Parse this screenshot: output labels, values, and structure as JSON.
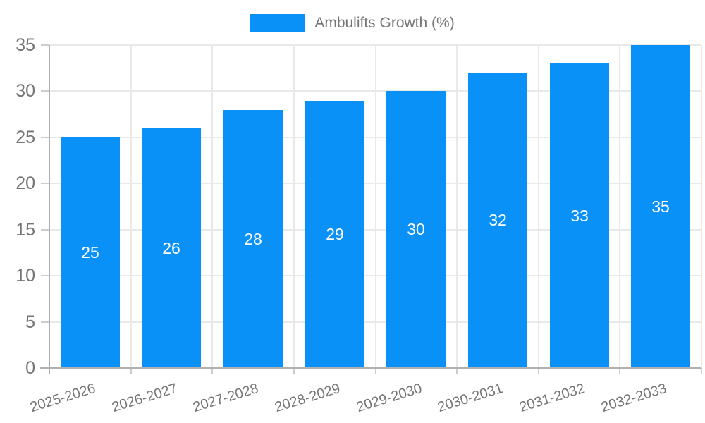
{
  "legend": {
    "label": "Ambulifts Growth (%)",
    "swatch_color": "#0991f7"
  },
  "chart_data": {
    "type": "bar",
    "title": "Ambulifts Growth (%)",
    "categories": [
      "2025-2026",
      "2026-2027",
      "2027-2028",
      "2028-2029",
      "2029-2030",
      "2030-2031",
      "2031-2032",
      "2032-2033"
    ],
    "series": [
      {
        "name": "Ambulifts Growth (%)",
        "values": [
          25,
          26,
          28,
          29,
          30,
          32,
          33,
          35
        ]
      }
    ],
    "value_labels": [
      "25",
      "26",
      "28",
      "29",
      "30",
      "32",
      "33",
      "35"
    ],
    "xlabel": "",
    "ylabel": "",
    "ylim": [
      0,
      35
    ],
    "yticks": [
      0,
      5,
      10,
      15,
      20,
      25,
      30,
      35
    ],
    "grid": true,
    "legend_position": "top-center",
    "bar_color": "#0991f7",
    "value_label_color": "#ffffff",
    "axis_text_color": "#757575",
    "gridline_color": "#e9e9e9",
    "axis_line_color": "#b0b0b0"
  }
}
